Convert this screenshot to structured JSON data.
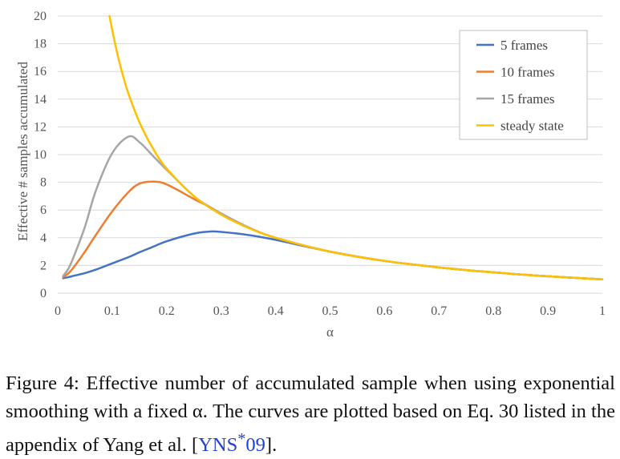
{
  "chart_data": {
    "type": "line",
    "title": "",
    "xlabel": "α",
    "ylabel": "Effective # samples accumulated",
    "xlim": [
      0,
      1
    ],
    "ylim": [
      0,
      20
    ],
    "x_ticks": [
      "0",
      "0.1",
      "0.2",
      "0.3",
      "0.4",
      "0.5",
      "0.6",
      "0.7",
      "0.8",
      "0.9",
      "1"
    ],
    "y_ticks": [
      "0",
      "2",
      "4",
      "6",
      "8",
      "10",
      "12",
      "14",
      "16",
      "18",
      "20"
    ],
    "grid": "horizontal",
    "legend_position": "top-right",
    "x": [
      0.01,
      0.02,
      0.03,
      0.05,
      0.07,
      0.1,
      0.13,
      0.15,
      0.175,
      0.2,
      0.25,
      0.28,
      0.3,
      0.35,
      0.4,
      0.5,
      0.6,
      0.7,
      0.8,
      0.9,
      1.0
    ],
    "series": [
      {
        "name": "5 frames",
        "color": "#4472c4",
        "values": [
          1.08,
          1.16,
          1.26,
          1.45,
          1.7,
          2.15,
          2.6,
          2.95,
          3.35,
          3.75,
          4.3,
          4.45,
          4.42,
          4.2,
          3.85,
          3.0,
          2.33,
          1.86,
          1.5,
          1.22,
          1.0
        ]
      },
      {
        "name": "10 frames",
        "color": "#ed7d31",
        "values": [
          1.16,
          1.45,
          1.9,
          3.0,
          4.2,
          5.9,
          7.3,
          7.9,
          8.05,
          7.85,
          6.8,
          6.2,
          5.75,
          4.75,
          4.0,
          3.0,
          2.33,
          1.86,
          1.5,
          1.22,
          1.0
        ]
      },
      {
        "name": "15 frames",
        "color": "#a5a5a5",
        "values": [
          1.25,
          1.8,
          2.7,
          4.8,
          7.4,
          10.1,
          11.3,
          10.9,
          9.9,
          8.9,
          7.0,
          6.2,
          5.75,
          4.75,
          4.0,
          3.0,
          2.33,
          1.86,
          1.5,
          1.22,
          1.0
        ]
      },
      {
        "name": "steady state",
        "color": "#ffc000",
        "x": [
          0.095,
          0.1,
          0.11,
          0.12,
          0.13,
          0.15,
          0.175,
          0.2,
          0.25,
          0.3,
          0.35,
          0.4,
          0.5,
          0.6,
          0.7,
          0.8,
          0.9,
          1.0
        ],
        "values": [
          20.0,
          19.0,
          17.18,
          15.67,
          14.38,
          12.33,
          10.43,
          9.0,
          7.0,
          5.67,
          4.71,
          4.0,
          3.0,
          2.33,
          1.86,
          1.5,
          1.22,
          1.0
        ]
      }
    ]
  },
  "caption": {
    "part1": "Figure 4: Effective number of accumulated sample when using exponential smoothing with a fixed ",
    "alpha": "α",
    "part2": ". The curves are plotted based on Eq. 30 listed in the appendix of Yang et al. [",
    "ref_main": "YNS",
    "ref_sup": "*",
    "ref_tail": "09",
    "part3": "]."
  }
}
